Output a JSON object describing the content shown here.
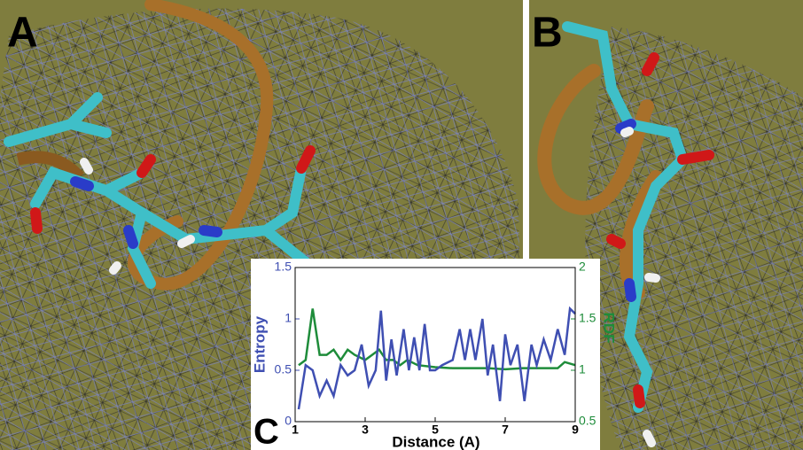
{
  "panels": {
    "a": "A",
    "b": "B"
  },
  "chart_data": {
    "type": "line",
    "panel_label": "C",
    "xlabel": "Distance (A)",
    "ylabel": "Entropy",
    "y2label": "RDF",
    "xlim": [
      1,
      9
    ],
    "xticks": [
      1,
      3,
      5,
      7,
      9
    ],
    "ylim": [
      0,
      1.5
    ],
    "yticks": [
      0,
      0.5,
      1,
      1.5
    ],
    "y2lim": [
      0.5,
      2
    ],
    "y2ticks": [
      0.5,
      1,
      1.5,
      2
    ],
    "series": [
      {
        "color": "#3f4fb2",
        "x": [
          1.1,
          1.3,
          1.5,
          1.7,
          1.9,
          2.1,
          2.3,
          2.5,
          2.7,
          2.9,
          3.1,
          3.3,
          3.45,
          3.6,
          3.75,
          3.9,
          4.1,
          4.25,
          4.4,
          4.55,
          4.7,
          4.85,
          5.0,
          5.2,
          5.5,
          5.7,
          5.85,
          6.0,
          6.15,
          6.35,
          6.5,
          6.65,
          6.85,
          7.0,
          7.15,
          7.35,
          7.55,
          7.75,
          7.9,
          8.1,
          8.3,
          8.5,
          8.7,
          8.85,
          9.0
        ],
        "values": [
          0.12,
          0.55,
          0.5,
          0.25,
          0.4,
          0.25,
          0.55,
          0.45,
          0.5,
          0.75,
          0.35,
          0.5,
          1.08,
          0.4,
          0.8,
          0.45,
          0.9,
          0.5,
          0.82,
          0.5,
          0.95,
          0.5,
          0.5,
          0.55,
          0.6,
          0.9,
          0.6,
          0.9,
          0.6,
          1.0,
          0.45,
          0.75,
          0.2,
          0.85,
          0.55,
          0.75,
          0.2,
          0.75,
          0.55,
          0.8,
          0.6,
          0.9,
          0.65,
          1.1,
          1.05
        ]
      },
      {
        "color": "#1e8c3a",
        "axis": "y2",
        "x": [
          1.1,
          1.3,
          1.5,
          1.7,
          1.9,
          2.1,
          2.3,
          2.5,
          2.7,
          3.0,
          3.2,
          3.4,
          3.6,
          3.8,
          4.0,
          4.2,
          4.5,
          5.0,
          5.5,
          6.0,
          6.5,
          7.0,
          7.5,
          8.0,
          8.5,
          8.7,
          9.0
        ],
        "values": [
          1.05,
          1.1,
          1.6,
          1.15,
          1.15,
          1.2,
          1.1,
          1.2,
          1.15,
          1.1,
          1.15,
          1.2,
          1.1,
          1.1,
          1.05,
          1.1,
          1.05,
          1.03,
          1.02,
          1.02,
          1.02,
          1.01,
          1.02,
          1.02,
          1.02,
          1.08,
          1.05
        ]
      }
    ]
  }
}
